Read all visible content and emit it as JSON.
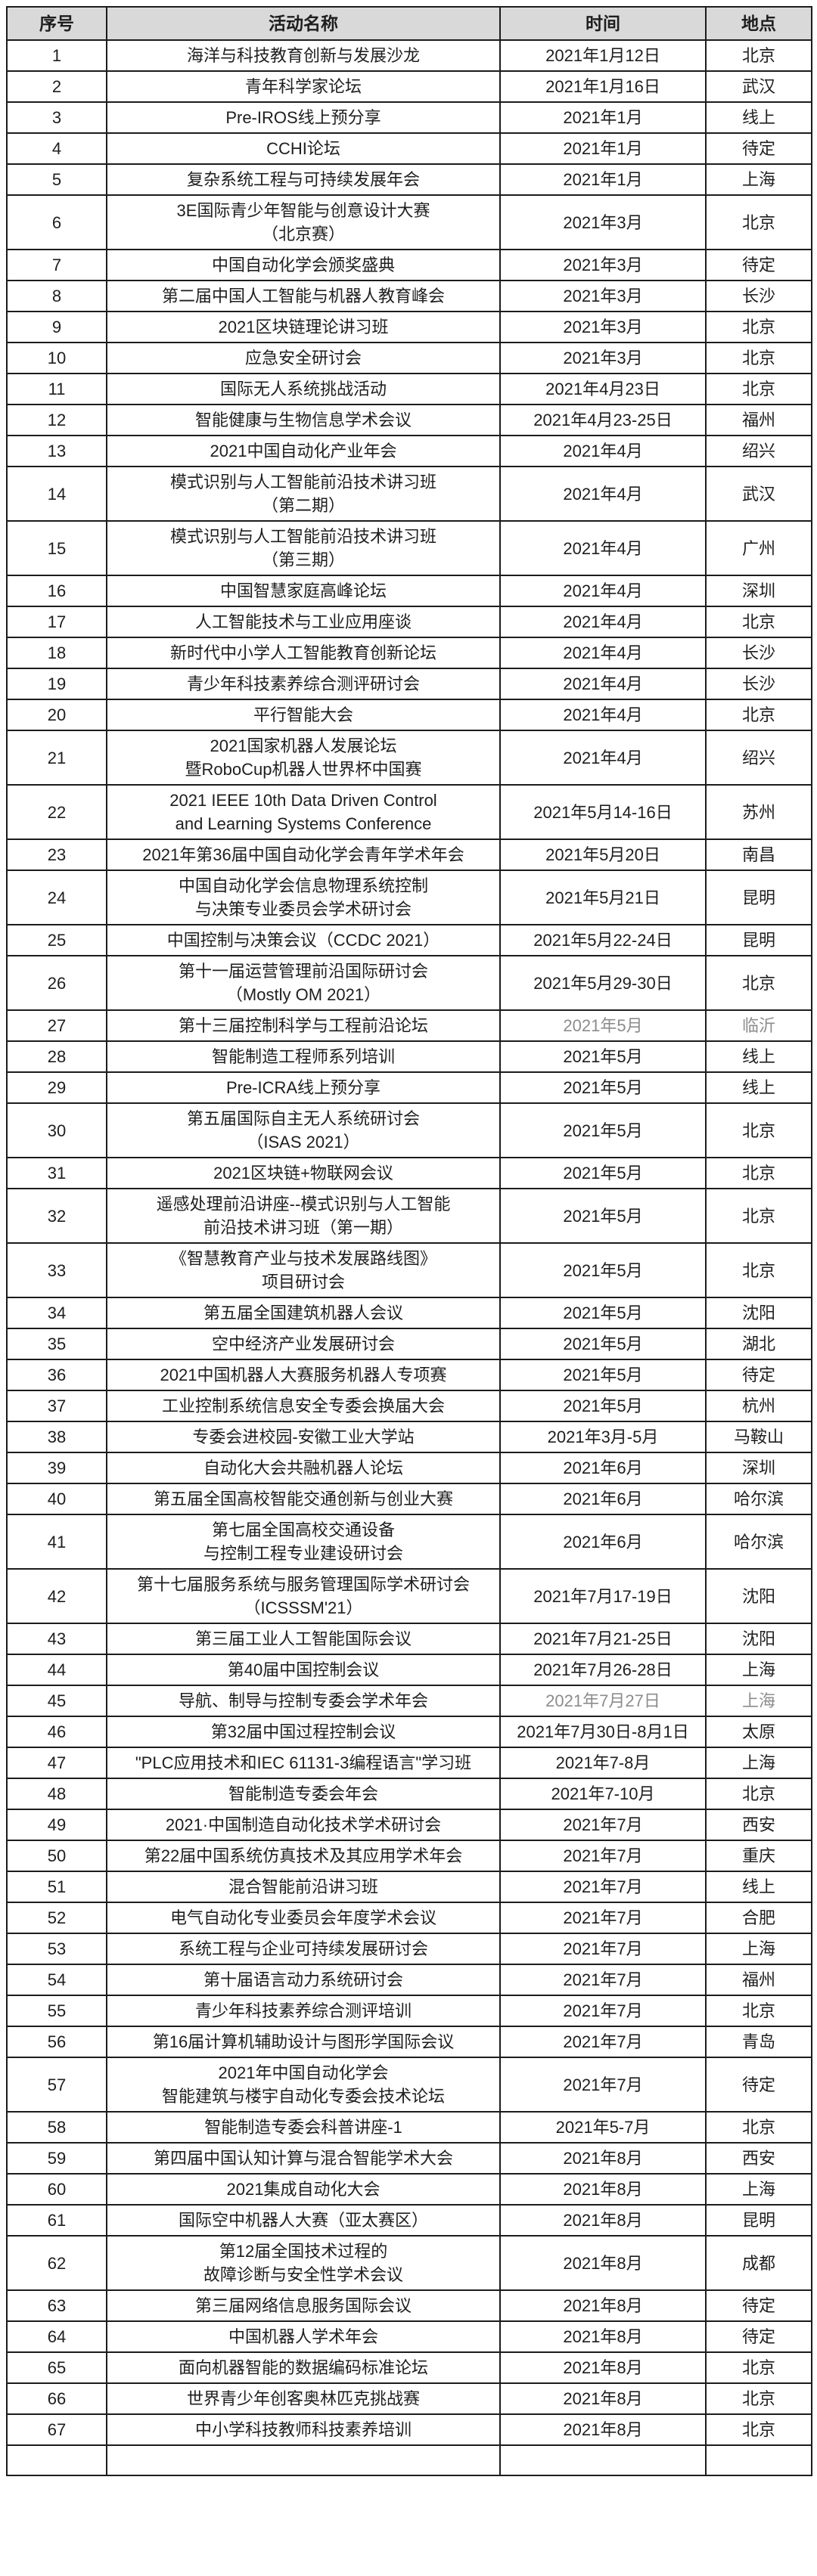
{
  "colors": {
    "text": "#1e1e1e",
    "border": "#1c1c1c",
    "header_bg": "#d9d9d9",
    "muted_text": "#8c8c8c",
    "page_bg": "#ffffff"
  },
  "table": {
    "columns": [
      {
        "key": "no",
        "label": "序号"
      },
      {
        "key": "name",
        "label": "活动名称"
      },
      {
        "key": "time",
        "label": "时间"
      },
      {
        "key": "place",
        "label": "地点"
      }
    ],
    "rows": [
      {
        "no": "1",
        "name": "海洋与科技教育创新与发展沙龙",
        "time": "2021年1月12日",
        "place": "北京"
      },
      {
        "no": "2",
        "name": "青年科学家论坛",
        "time": "2021年1月16日",
        "place": "武汉"
      },
      {
        "no": "3",
        "name": "Pre-IROS线上预分享",
        "time": "2021年1月",
        "place": "线上"
      },
      {
        "no": "4",
        "name": "CCHI论坛",
        "time": "2021年1月",
        "place": "待定"
      },
      {
        "no": "5",
        "name": "复杂系统工程与可持续发展年会",
        "time": "2021年1月",
        "place": "上海"
      },
      {
        "no": "6",
        "name": "3E国际青少年智能与创意设计大赛\n（北京赛）",
        "time": "2021年3月",
        "place": "北京"
      },
      {
        "no": "7",
        "name": "中国自动化学会颁奖盛典",
        "time": "2021年3月",
        "place": "待定"
      },
      {
        "no": "8",
        "name": "第二届中国人工智能与机器人教育峰会",
        "time": "2021年3月",
        "place": "长沙"
      },
      {
        "no": "9",
        "name": "2021区块链理论讲习班",
        "time": "2021年3月",
        "place": "北京"
      },
      {
        "no": "10",
        "name": "应急安全研讨会",
        "time": "2021年3月",
        "place": "北京"
      },
      {
        "no": "11",
        "name": "国际无人系统挑战活动",
        "time": "2021年4月23日",
        "place": "北京"
      },
      {
        "no": "12",
        "name": "智能健康与生物信息学术会议",
        "time": "2021年4月23-25日",
        "place": "福州"
      },
      {
        "no": "13",
        "name": "2021中国自动化产业年会",
        "time": "2021年4月",
        "place": "绍兴"
      },
      {
        "no": "14",
        "name": "模式识别与人工智能前沿技术讲习班\n（第二期）",
        "time": "2021年4月",
        "place": "武汉"
      },
      {
        "no": "15",
        "name": "模式识别与人工智能前沿技术讲习班\n（第三期）",
        "time": "2021年4月",
        "place": "广州"
      },
      {
        "no": "16",
        "name": "中国智慧家庭高峰论坛",
        "time": "2021年4月",
        "place": "深圳"
      },
      {
        "no": "17",
        "name": "人工智能技术与工业应用座谈",
        "time": "2021年4月",
        "place": "北京"
      },
      {
        "no": "18",
        "name": "新时代中小学人工智能教育创新论坛",
        "time": "2021年4月",
        "place": "长沙"
      },
      {
        "no": "19",
        "name": "青少年科技素养综合测评研讨会",
        "time": "2021年4月",
        "place": "长沙"
      },
      {
        "no": "20",
        "name": "平行智能大会",
        "time": "2021年4月",
        "place": "北京"
      },
      {
        "no": "21",
        "name": "2021国家机器人发展论坛\n暨RoboCup机器人世界杯中国赛",
        "time": "2021年4月",
        "place": "绍兴"
      },
      {
        "no": "22",
        "name": "2021 IEEE 10th Data Driven Control\nand Learning Systems Conference",
        "time": "2021年5月14-16日",
        "place": "苏州"
      },
      {
        "no": "23",
        "name": "2021年第36届中国自动化学会青年学术年会",
        "time": "2021年5月20日",
        "place": "南昌"
      },
      {
        "no": "24",
        "name": "中国自动化学会信息物理系统控制\n与决策专业委员会学术研讨会",
        "time": "2021年5月21日",
        "place": "昆明"
      },
      {
        "no": "25",
        "name": "中国控制与决策会议（CCDC 2021）",
        "time": "2021年5月22-24日",
        "place": "昆明"
      },
      {
        "no": "26",
        "name": "第十一届运营管理前沿国际研讨会\n（Mostly OM 2021）",
        "time": "2021年5月29-30日",
        "place": "北京"
      },
      {
        "no": "27",
        "name": "第十三届控制科学与工程前沿论坛",
        "time": "2021年5月",
        "place": "临沂",
        "muted": true
      },
      {
        "no": "28",
        "name": "智能制造工程师系列培训",
        "time": "2021年5月",
        "place": "线上"
      },
      {
        "no": "29",
        "name": "Pre-ICRA线上预分享",
        "time": "2021年5月",
        "place": "线上"
      },
      {
        "no": "30",
        "name": "第五届国际自主无人系统研讨会\n（ISAS 2021）",
        "time": "2021年5月",
        "place": "北京"
      },
      {
        "no": "31",
        "name": "2021区块链+物联网会议",
        "time": "2021年5月",
        "place": "北京"
      },
      {
        "no": "32",
        "name": "遥感处理前沿讲座--模式识别与人工智能\n前沿技术讲习班（第一期）",
        "time": "2021年5月",
        "place": "北京"
      },
      {
        "no": "33",
        "name": "《智慧教育产业与技术发展路线图》\n项目研讨会",
        "time": "2021年5月",
        "place": "北京"
      },
      {
        "no": "34",
        "name": "第五届全国建筑机器人会议",
        "time": "2021年5月",
        "place": "沈阳"
      },
      {
        "no": "35",
        "name": "空中经济产业发展研讨会",
        "time": "2021年5月",
        "place": "湖北"
      },
      {
        "no": "36",
        "name": "2021中国机器人大赛服务机器人专项赛",
        "time": "2021年5月",
        "place": "待定"
      },
      {
        "no": "37",
        "name": "工业控制系统信息安全专委会换届大会",
        "time": "2021年5月",
        "place": "杭州"
      },
      {
        "no": "38",
        "name": "专委会进校园-安徽工业大学站",
        "time": "2021年3月-5月",
        "place": "马鞍山"
      },
      {
        "no": "39",
        "name": "自动化大会共融机器人论坛",
        "time": "2021年6月",
        "place": "深圳"
      },
      {
        "no": "40",
        "name": "第五届全国高校智能交通创新与创业大赛",
        "time": "2021年6月",
        "place": "哈尔滨"
      },
      {
        "no": "41",
        "name": "第七届全国高校交通设备\n与控制工程专业建设研讨会",
        "time": "2021年6月",
        "place": "哈尔滨"
      },
      {
        "no": "42",
        "name": "第十七届服务系统与服务管理国际学术研讨会\n（ICSSSM'21）",
        "time": "2021年7月17-19日",
        "place": "沈阳"
      },
      {
        "no": "43",
        "name": "第三届工业人工智能国际会议",
        "time": "2021年7月21-25日",
        "place": "沈阳"
      },
      {
        "no": "44",
        "name": "第40届中国控制会议",
        "time": "2021年7月26-28日",
        "place": "上海"
      },
      {
        "no": "45",
        "name": "导航、制导与控制专委会学术年会",
        "time": "2021年7月27日",
        "place": "上海",
        "muted": true
      },
      {
        "no": "46",
        "name": "第32届中国过程控制会议",
        "time": "2021年7月30日-8月1日",
        "place": "太原"
      },
      {
        "no": "47",
        "name": "\"PLC应用技术和IEC 61131-3编程语言\"学习班",
        "time": "2021年7-8月",
        "place": "上海"
      },
      {
        "no": "48",
        "name": "智能制造专委会年会",
        "time": "2021年7-10月",
        "place": "北京"
      },
      {
        "no": "49",
        "name": "2021·中国制造自动化技术学术研讨会",
        "time": "2021年7月",
        "place": "西安"
      },
      {
        "no": "50",
        "name": "第22届中国系统仿真技术及其应用学术年会",
        "time": "2021年7月",
        "place": "重庆"
      },
      {
        "no": "51",
        "name": "混合智能前沿讲习班",
        "time": "2021年7月",
        "place": "线上"
      },
      {
        "no": "52",
        "name": "电气自动化专业委员会年度学术会议",
        "time": "2021年7月",
        "place": "合肥"
      },
      {
        "no": "53",
        "name": "系统工程与企业可持续发展研讨会",
        "time": "2021年7月",
        "place": "上海"
      },
      {
        "no": "54",
        "name": "第十届语言动力系统研讨会",
        "time": "2021年7月",
        "place": "福州"
      },
      {
        "no": "55",
        "name": "青少年科技素养综合测评培训",
        "time": "2021年7月",
        "place": "北京"
      },
      {
        "no": "56",
        "name": "第16届计算机辅助设计与图形学国际会议",
        "time": "2021年7月",
        "place": "青岛"
      },
      {
        "no": "57",
        "name": "2021年中国自动化学会\n智能建筑与楼宇自动化专委会技术论坛",
        "time": "2021年7月",
        "place": "待定"
      },
      {
        "no": "58",
        "name": "智能制造专委会科普讲座-1",
        "time": "2021年5-7月",
        "place": "北京"
      },
      {
        "no": "59",
        "name": "第四届中国认知计算与混合智能学术大会",
        "time": "2021年8月",
        "place": "西安"
      },
      {
        "no": "60",
        "name": "2021集成自动化大会",
        "time": "2021年8月",
        "place": "上海"
      },
      {
        "no": "61",
        "name": "国际空中机器人大赛（亚太赛区）",
        "time": "2021年8月",
        "place": "昆明"
      },
      {
        "no": "62",
        "name": "第12届全国技术过程的\n故障诊断与安全性学术会议",
        "time": "2021年8月",
        "place": "成都"
      },
      {
        "no": "63",
        "name": "第三届网络信息服务国际会议",
        "time": "2021年8月",
        "place": "待定"
      },
      {
        "no": "64",
        "name": "中国机器人学术年会",
        "time": "2021年8月",
        "place": "待定"
      },
      {
        "no": "65",
        "name": "面向机器智能的数据编码标准论坛",
        "time": "2021年8月",
        "place": "北京"
      },
      {
        "no": "66",
        "name": "世界青少年创客奥林匹克挑战赛",
        "time": "2021年8月",
        "place": "北京"
      },
      {
        "no": "67",
        "name": "中小学科技教师科技素养培训",
        "time": "2021年8月",
        "place": "北京"
      }
    ],
    "clipped_partial_row_at_bottom": true
  }
}
